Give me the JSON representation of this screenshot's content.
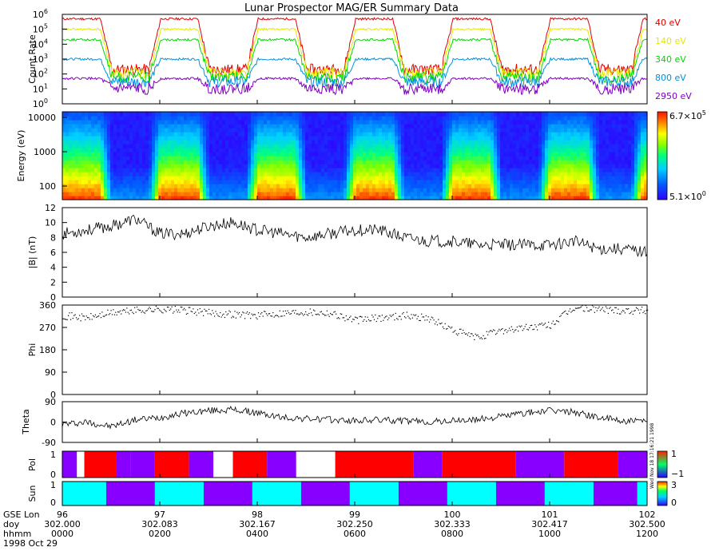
{
  "title": "Lunar Prospector MAG/ER Summary Data",
  "panels": {
    "count_rate": {
      "ylabel": "Count Rate",
      "tick_labels": [
        "10",
        "10",
        "10",
        "10",
        "10",
        "10",
        "10"
      ],
      "tick_exponents": [
        "0",
        "1",
        "2",
        "3",
        "4",
        "5",
        "6"
      ],
      "legend": [
        {
          "label": "40 eV",
          "color": "#e00000"
        },
        {
          "label": "140 eV",
          "color": "#e8e800"
        },
        {
          "label": "340 eV",
          "color": "#00d800"
        },
        {
          "label": "800 eV",
          "color": "#0090e0"
        },
        {
          "label": "2950 eV",
          "color": "#8000c0"
        }
      ]
    },
    "spectrogram": {
      "ylabel": "Energy (eV)",
      "tick_labels": [
        "10000",
        "1000",
        "100"
      ],
      "colorbar_max_mantissa": "6.7×10",
      "colorbar_max_exponent": "5",
      "colorbar_min_mantissa": "5.1×10",
      "colorbar_min_exponent": "0"
    },
    "bmag": {
      "ylabel": "|B| (nT)",
      "tick_labels": [
        "0",
        "2",
        "4",
        "6",
        "8",
        "10",
        "12"
      ]
    },
    "phi": {
      "ylabel": "Phi",
      "tick_labels": [
        "0",
        "90",
        "180",
        "270",
        "360"
      ]
    },
    "theta": {
      "ylabel": "Theta",
      "tick_labels": [
        "-90",
        "0",
        "90"
      ]
    },
    "pol": {
      "ylabel": "Pol",
      "tick_labels": [
        "0",
        "1"
      ],
      "colorbar_labels": [
        "1",
        "−1"
      ],
      "colors": {
        "positive": "#ff0000",
        "negative": "#8800ff"
      },
      "side_text": "Wed Nov 18 17:16:21 1998"
    },
    "sun": {
      "ylabel": "Sun",
      "tick_labels": [
        "0",
        "1"
      ],
      "colorbar_labels": [
        "3",
        "0"
      ],
      "colors": {
        "sun": "#00ffff",
        "shadow": "#8800ff"
      }
    }
  },
  "x_axis": {
    "row_labels": [
      "GSE Lon",
      "doy",
      "hhmm",
      "1998 Oct 29"
    ],
    "gse_lon": [
      "96",
      "97",
      "98",
      "99",
      "100",
      "101",
      "102"
    ],
    "doy": [
      "302.000",
      "302.083",
      "302.167",
      "302.250",
      "302.333",
      "302.417",
      "302.500"
    ],
    "hhmm": [
      "0000",
      "0200",
      "0400",
      "0600",
      "0800",
      "1000",
      "1200"
    ]
  },
  "chart_data": [
    {
      "type": "line",
      "title": "Lunar Prospector MAG/ER Summary Data",
      "ylabel": "Count Rate",
      "y_scale": "log",
      "ylim": [
        1,
        1000000
      ],
      "x_unit": "hours since 1998 Oct 29 0000 UT",
      "xlim": [
        0,
        12
      ],
      "shadow_intervals": [
        [
          0.9,
          1.9
        ],
        [
          2.9,
          3.9
        ],
        [
          4.9,
          5.9
        ],
        [
          6.9,
          7.9
        ],
        [
          8.9,
          9.9
        ],
        [
          10.9,
          11.8
        ]
      ],
      "series": [
        {
          "name": "40 eV",
          "dayside_level": 500000,
          "shadow_level": 200
        },
        {
          "name": "140 eV",
          "dayside_level": 100000,
          "shadow_level": 120
        },
        {
          "name": "340 eV",
          "dayside_level": 20000,
          "shadow_level": 60
        },
        {
          "name": "800 eV",
          "dayside_level": 1000,
          "shadow_level": 30
        },
        {
          "name": "2950 eV",
          "dayside_level": 50,
          "shadow_level": 10
        }
      ]
    },
    {
      "type": "heatmap",
      "ylabel": "Energy (eV)",
      "y_scale": "log",
      "ylim": [
        40,
        15000
      ],
      "colorbar_range": [
        5.1,
        670000
      ],
      "shadow_intervals": [
        [
          0.9,
          1.9
        ],
        [
          2.9,
          3.9
        ],
        [
          4.9,
          5.9
        ],
        [
          6.9,
          7.9
        ],
        [
          8.9,
          9.9
        ],
        [
          10.9,
          11.8
        ]
      ]
    },
    {
      "type": "line",
      "ylabel": "|B| (nT)",
      "ylim": [
        0,
        12
      ],
      "x": [
        0,
        0.5,
        1,
        1.5,
        2,
        2.5,
        3,
        3.5,
        4,
        4.5,
        5,
        5.5,
        6,
        6.5,
        7,
        7.5,
        8,
        8.5,
        9,
        9.5,
        10,
        10.5,
        11,
        11.5,
        12
      ],
      "y": [
        8.5,
        9,
        9.5,
        10.5,
        8.5,
        8.5,
        9.5,
        10,
        9,
        8.5,
        8,
        8.5,
        9,
        9,
        8,
        7.5,
        7.5,
        7,
        7,
        7,
        7,
        7.5,
        6.5,
        6.5,
        6
      ]
    },
    {
      "type": "scatter",
      "ylabel": "Phi",
      "ylim": [
        0,
        360
      ],
      "x": [
        0,
        0.5,
        1,
        1.5,
        2,
        2.5,
        3,
        3.5,
        4,
        4.5,
        5,
        5.5,
        6,
        6.5,
        7,
        7.5,
        8,
        8.5,
        9,
        9.5,
        10,
        10.5,
        11,
        11.5,
        12
      ],
      "y": [
        320,
        310,
        330,
        340,
        345,
        340,
        330,
        325,
        320,
        330,
        335,
        330,
        300,
        310,
        320,
        310,
        260,
        230,
        260,
        270,
        280,
        350,
        345,
        340,
        340
      ]
    },
    {
      "type": "line",
      "ylabel": "Theta",
      "ylim": [
        -90,
        90
      ],
      "x": [
        0,
        0.5,
        1,
        1.5,
        2,
        2.5,
        3,
        3.5,
        4,
        4.5,
        5,
        5.5,
        6,
        6.5,
        7,
        7.5,
        8,
        8.5,
        9,
        9.5,
        10,
        10.5,
        11,
        11.5,
        12
      ],
      "y": [
        -10,
        0,
        -20,
        10,
        20,
        40,
        50,
        55,
        40,
        20,
        15,
        10,
        5,
        10,
        5,
        0,
        5,
        10,
        25,
        40,
        50,
        45,
        20,
        5,
        0
      ]
    },
    {
      "type": "heatmap",
      "ylabel": "Pol",
      "categories": [
        "-1",
        "1"
      ],
      "segments": [
        {
          "x0": 0,
          "x1": 0.3,
          "value": -1
        },
        {
          "x0": 0.3,
          "x1": 0.45,
          "value": 0
        },
        {
          "x0": 0.45,
          "x1": 1.1,
          "value": 1
        },
        {
          "x0": 1.1,
          "x1": 1.4,
          "value": -1
        },
        {
          "x0": 1.4,
          "x1": 1.9,
          "value": -1
        },
        {
          "x0": 1.9,
          "x1": 2.6,
          "value": 1
        },
        {
          "x0": 2.6,
          "x1": 3.1,
          "value": -1
        },
        {
          "x0": 3.1,
          "x1": 3.5,
          "value": 0
        },
        {
          "x0": 3.5,
          "x1": 4.2,
          "value": 1
        },
        {
          "x0": 4.2,
          "x1": 4.8,
          "value": -1
        },
        {
          "x0": 4.8,
          "x1": 5.6,
          "value": 0
        },
        {
          "x0": 5.6,
          "x1": 7.2,
          "value": 1
        },
        {
          "x0": 7.2,
          "x1": 7.8,
          "value": -1
        },
        {
          "x0": 7.8,
          "x1": 9.3,
          "value": 1
        },
        {
          "x0": 9.3,
          "x1": 10.3,
          "value": -1
        },
        {
          "x0": 10.3,
          "x1": 11.4,
          "value": 1
        },
        {
          "x0": 11.4,
          "x1": 12,
          "value": -1
        }
      ]
    },
    {
      "type": "heatmap",
      "ylabel": "Sun",
      "categories": [
        "shadow",
        "sun"
      ],
      "segments": [
        {
          "x0": 0,
          "x1": 0.9,
          "value": "sun"
        },
        {
          "x0": 0.9,
          "x1": 1.9,
          "value": "shadow"
        },
        {
          "x0": 1.9,
          "x1": 2.9,
          "value": "sun"
        },
        {
          "x0": 2.9,
          "x1": 3.9,
          "value": "shadow"
        },
        {
          "x0": 3.9,
          "x1": 4.9,
          "value": "sun"
        },
        {
          "x0": 4.9,
          "x1": 5.9,
          "value": "shadow"
        },
        {
          "x0": 5.9,
          "x1": 6.9,
          "value": "sun"
        },
        {
          "x0": 6.9,
          "x1": 7.9,
          "value": "shadow"
        },
        {
          "x0": 7.9,
          "x1": 8.9,
          "value": "sun"
        },
        {
          "x0": 8.9,
          "x1": 9.9,
          "value": "shadow"
        },
        {
          "x0": 9.9,
          "x1": 10.9,
          "value": "sun"
        },
        {
          "x0": 10.9,
          "x1": 11.8,
          "value": "shadow"
        },
        {
          "x0": 11.8,
          "x1": 12,
          "value": "sun"
        }
      ]
    }
  ]
}
